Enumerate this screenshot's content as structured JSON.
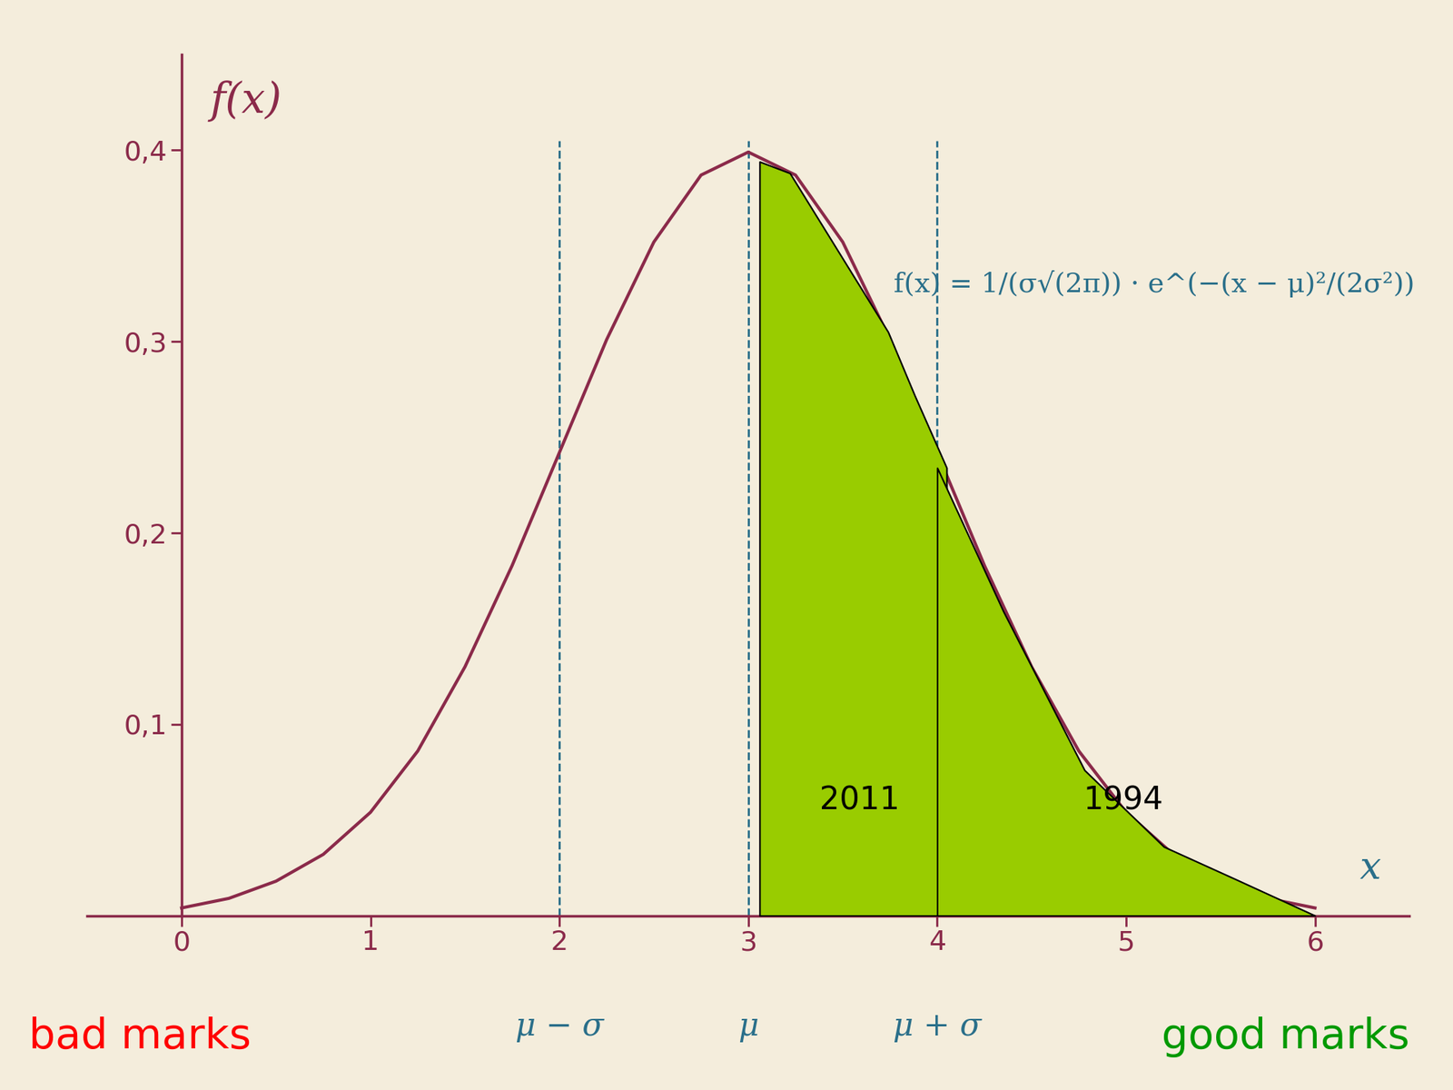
{
  "chart_data": {
    "type": "line",
    "x_label": "x",
    "y_label": "f(x)",
    "formula": "f(x) = 1/(σ√(2π)) · e^(−(x − μ)²/(2σ²))",
    "xlim": [
      -0.5,
      6.5
    ],
    "ylim": [
      0,
      0.45
    ],
    "xticks": [
      0,
      1,
      2,
      3,
      4,
      5,
      6
    ],
    "yticks": [
      {
        "value": 0.1,
        "label": "0,1"
      },
      {
        "value": 0.2,
        "label": "0,2"
      },
      {
        "value": 0.3,
        "label": "0,3"
      },
      {
        "value": 0.4,
        "label": "0,4"
      }
    ],
    "grid": false,
    "markers": [
      {
        "x": 2,
        "label": "μ − σ"
      },
      {
        "x": 3,
        "label": "μ"
      },
      {
        "x": 4,
        "label": "μ + σ"
      }
    ],
    "left_note": {
      "text": "bad marks",
      "color": "#ff0000"
    },
    "right_note": {
      "text": "good marks",
      "color": "#009900"
    },
    "series": [
      {
        "type": "line",
        "color": "#8b2a4a",
        "x": [
          0,
          0.25,
          0.5,
          0.75,
          1,
          1.25,
          1.5,
          1.75,
          2,
          2.25,
          2.5,
          2.75,
          3,
          3.25,
          3.5,
          3.75,
          4,
          4.25,
          4.5,
          4.75,
          5,
          5.25,
          5.5,
          5.75,
          6
        ],
        "values": [
          0.004,
          0.009,
          0.018,
          0.032,
          0.054,
          0.086,
          0.13,
          0.183,
          0.242,
          0.301,
          0.352,
          0.387,
          0.399,
          0.387,
          0.352,
          0.301,
          0.242,
          0.183,
          0.13,
          0.086,
          0.054,
          0.032,
          0.018,
          0.009,
          0.004
        ]
      },
      {
        "type": "area",
        "name": "2011",
        "color": "#99cc00",
        "x": [
          3.06,
          3.22,
          3.74,
          3.88,
          4.05
        ],
        "values": [
          0.394,
          0.388,
          0.305,
          0.272,
          0.234
        ]
      },
      {
        "type": "area",
        "name": "1994",
        "color": "#99cc00",
        "x": [
          4.0,
          4.35,
          4.78,
          5.2,
          5.58,
          6.0
        ],
        "values": [
          0.234,
          0.159,
          0.076,
          0.036,
          0.019,
          0.0
        ]
      }
    ]
  }
}
